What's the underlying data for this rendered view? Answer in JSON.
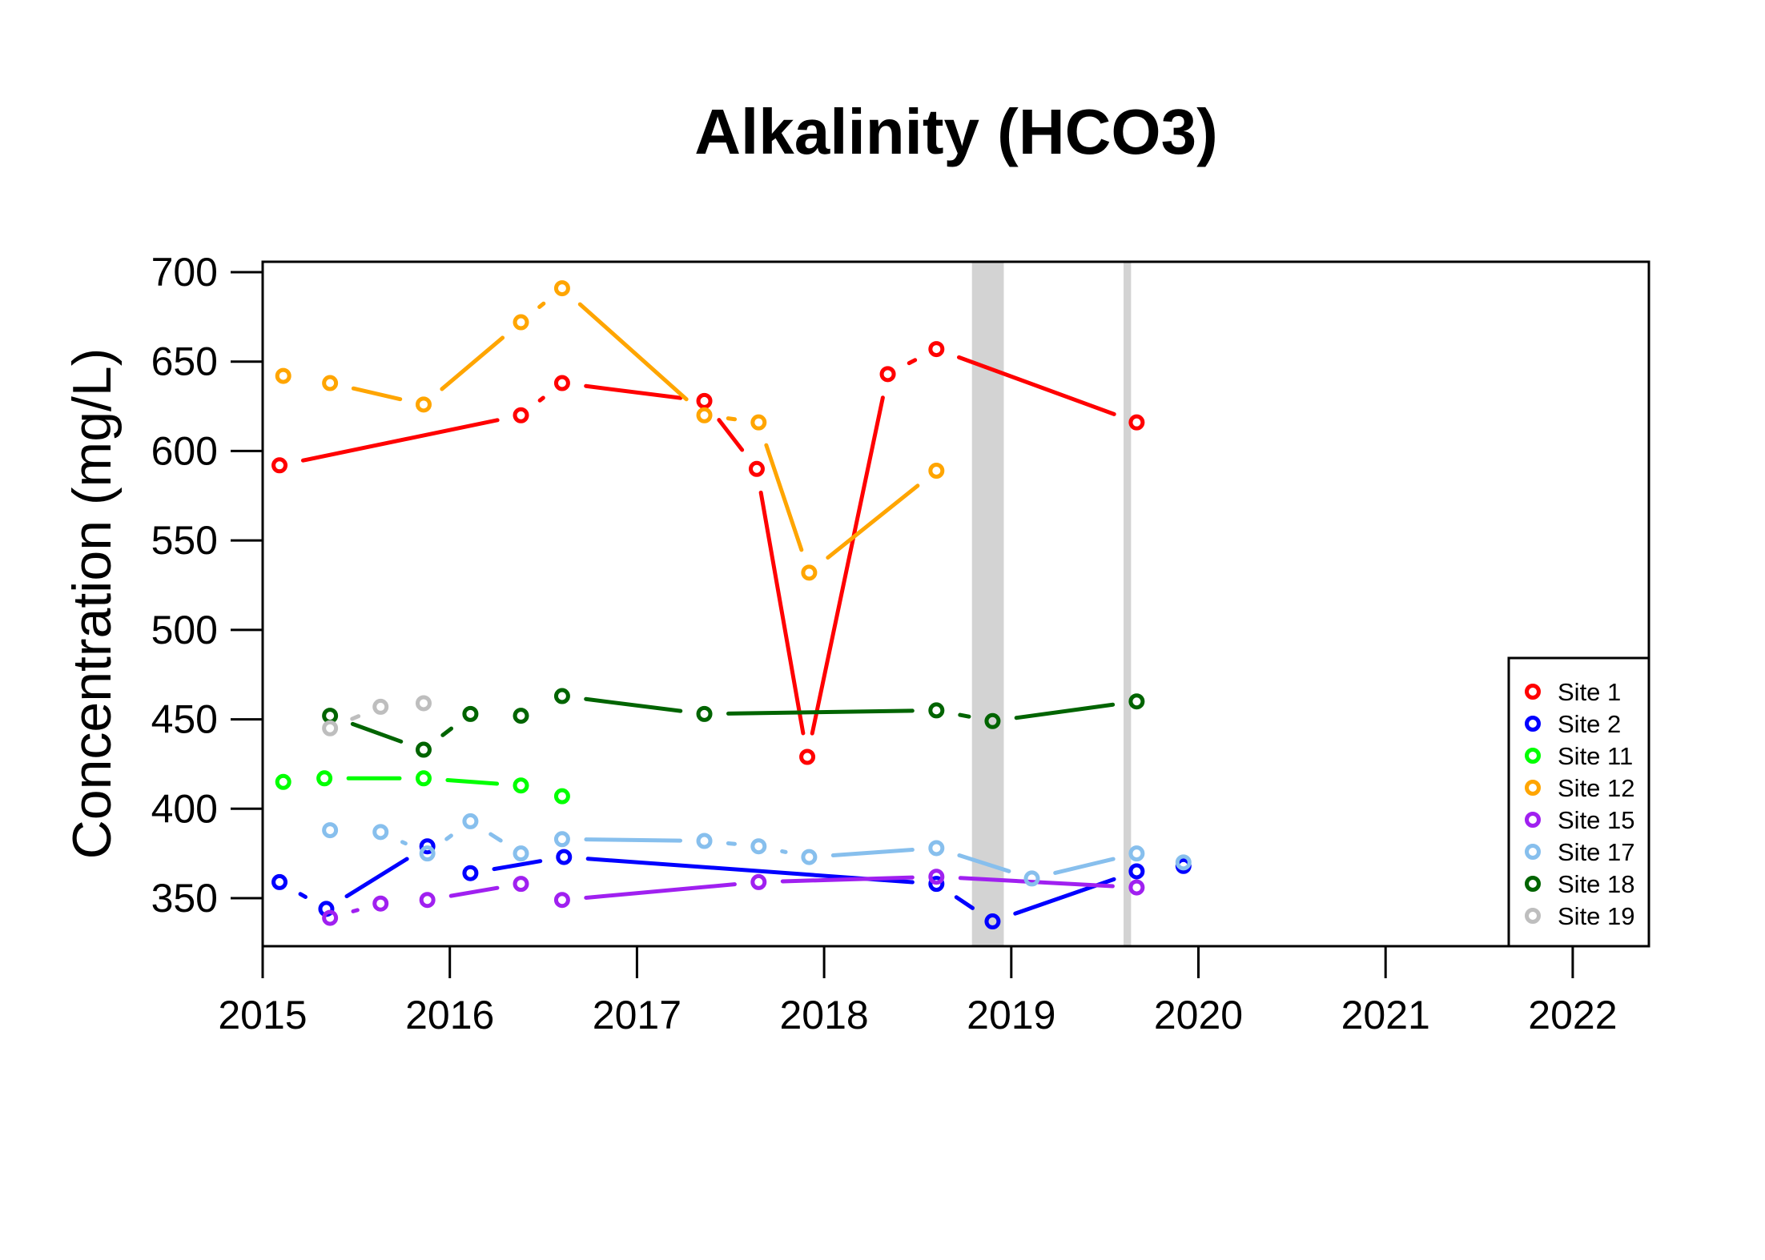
{
  "chart_data": {
    "type": "line",
    "title": "Alkalinity (HCO3)",
    "xlabel": "",
    "ylabel": "Concentration (mg/L)",
    "xlim": [
      2015,
      2022.4
    ],
    "ylim": [
      322,
      705
    ],
    "x_ticks": [
      2015,
      2016,
      2017,
      2018,
      2019,
      2020,
      2021,
      2022
    ],
    "y_ticks": [
      350,
      400,
      450,
      500,
      550,
      600,
      650,
      700
    ],
    "grid": false,
    "legend_position": "bottom-right",
    "shaded_periods": [
      {
        "start": 2018.79,
        "end": 2018.96,
        "color": "#d3d3d3"
      },
      {
        "start": 2019.6,
        "end": 2019.64,
        "color": "#d3d3d3"
      }
    ],
    "series": [
      {
        "name": "Site 1",
        "color": "#ff0000",
        "x": [
          2015.09,
          2016.38,
          2016.6,
          2017.36,
          2017.64,
          2017.91,
          2018.34,
          2018.6,
          2019.67
        ],
        "y": [
          592,
          620,
          638,
          628,
          590,
          429,
          643,
          657,
          616
        ]
      },
      {
        "name": "Site 2",
        "color": "#0000ff",
        "x": [
          2015.09,
          2015.34,
          2015.88,
          2016.11,
          2016.61,
          2018.6,
          2018.9,
          2019.67,
          2019.92
        ],
        "y": [
          359,
          344,
          379,
          364,
          373,
          358,
          337,
          365,
          368
        ]
      },
      {
        "name": "Site 11",
        "color": "#00ff00",
        "x": [
          2015.11,
          2015.33,
          2015.86,
          2016.38,
          2016.6
        ],
        "y": [
          415,
          417,
          417,
          413,
          407
        ]
      },
      {
        "name": "Site 12",
        "color": "#ffa500",
        "x": [
          2015.11,
          2015.36,
          2015.86,
          2016.38,
          2016.6,
          2017.36,
          2017.65,
          2017.92,
          2018.6
        ],
        "y": [
          642,
          638,
          626,
          672,
          691,
          620,
          616,
          532,
          589
        ]
      },
      {
        "name": "Site 15",
        "color": "#a020f0",
        "x": [
          2015.36,
          2015.63,
          2015.88,
          2016.38,
          2016.6,
          2017.65,
          2018.6,
          2019.67
        ],
        "y": [
          339,
          347,
          349,
          358,
          349,
          359,
          362,
          356
        ]
      },
      {
        "name": "Site 17",
        "color": "#87bfed",
        "x": [
          2015.36,
          2015.63,
          2015.88,
          2016.11,
          2016.38,
          2016.6,
          2017.36,
          2017.65,
          2017.92,
          2018.6,
          2019.11,
          2019.67,
          2019.92
        ],
        "y": [
          388,
          387,
          375,
          393,
          375,
          383,
          382,
          379,
          373,
          378,
          361,
          375,
          370
        ]
      },
      {
        "name": "Site 18",
        "color": "#006400",
        "x": [
          2015.36,
          2015.86,
          2016.11,
          2016.38,
          2016.6,
          2017.36,
          2018.6,
          2018.9,
          2019.67
        ],
        "y": [
          452,
          433,
          453,
          452,
          463,
          453,
          455,
          449,
          460
        ]
      },
      {
        "name": "Site 19",
        "color": "#bebebe",
        "x": [
          2015.36,
          2015.63,
          2015.86
        ],
        "y": [
          445,
          457,
          459
        ]
      }
    ]
  }
}
